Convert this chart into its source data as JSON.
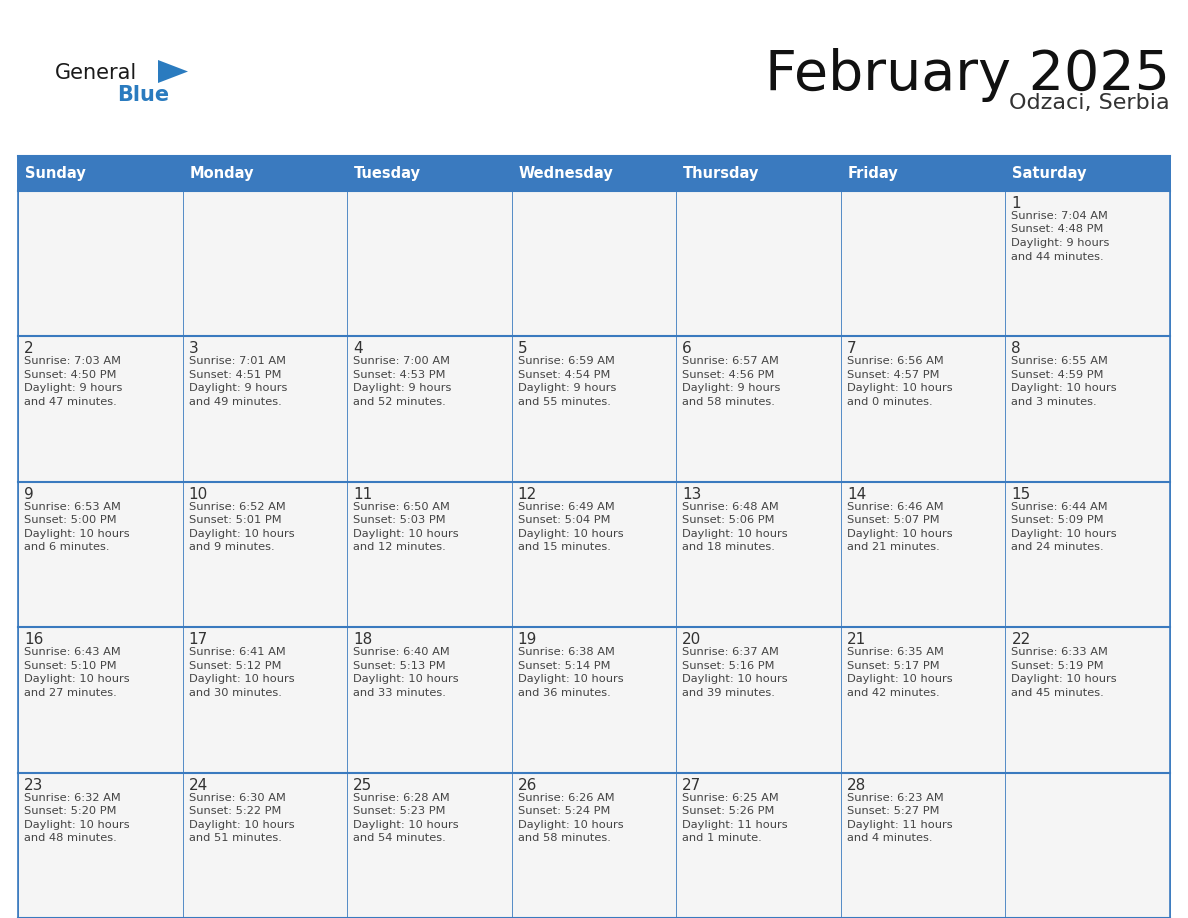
{
  "title": "February 2025",
  "subtitle": "Odzaci, Serbia",
  "days_of_week": [
    "Sunday",
    "Monday",
    "Tuesday",
    "Wednesday",
    "Thursday",
    "Friday",
    "Saturday"
  ],
  "header_bg": "#3a7abf",
  "header_text": "#ffffff",
  "cell_bg": "#f5f5f5",
  "cell_bg_last": "#f0f0f0",
  "border_color": "#3a7abf",
  "row_divider_color": "#3a7abf",
  "text_color": "#444444",
  "day_num_color": "#333333",
  "logo_general_color": "#1a1a1a",
  "logo_blue_color": "#2a7bbf",
  "logo_triangle_color": "#2a7bbf",
  "calendar": [
    [
      null,
      null,
      null,
      null,
      null,
      null,
      {
        "day": "1",
        "sunrise": "7:04 AM",
        "sunset": "4:48 PM",
        "daylight": "9 hours",
        "daylight2": "and 44 minutes."
      }
    ],
    [
      {
        "day": "2",
        "sunrise": "7:03 AM",
        "sunset": "4:50 PM",
        "daylight": "9 hours",
        "daylight2": "and 47 minutes."
      },
      {
        "day": "3",
        "sunrise": "7:01 AM",
        "sunset": "4:51 PM",
        "daylight": "9 hours",
        "daylight2": "and 49 minutes."
      },
      {
        "day": "4",
        "sunrise": "7:00 AM",
        "sunset": "4:53 PM",
        "daylight": "9 hours",
        "daylight2": "and 52 minutes."
      },
      {
        "day": "5",
        "sunrise": "6:59 AM",
        "sunset": "4:54 PM",
        "daylight": "9 hours",
        "daylight2": "and 55 minutes."
      },
      {
        "day": "6",
        "sunrise": "6:57 AM",
        "sunset": "4:56 PM",
        "daylight": "9 hours",
        "daylight2": "and 58 minutes."
      },
      {
        "day": "7",
        "sunrise": "6:56 AM",
        "sunset": "4:57 PM",
        "daylight": "10 hours",
        "daylight2": "and 0 minutes."
      },
      {
        "day": "8",
        "sunrise": "6:55 AM",
        "sunset": "4:59 PM",
        "daylight": "10 hours",
        "daylight2": "and 3 minutes."
      }
    ],
    [
      {
        "day": "9",
        "sunrise": "6:53 AM",
        "sunset": "5:00 PM",
        "daylight": "10 hours",
        "daylight2": "and 6 minutes."
      },
      {
        "day": "10",
        "sunrise": "6:52 AM",
        "sunset": "5:01 PM",
        "daylight": "10 hours",
        "daylight2": "and 9 minutes."
      },
      {
        "day": "11",
        "sunrise": "6:50 AM",
        "sunset": "5:03 PM",
        "daylight": "10 hours",
        "daylight2": "and 12 minutes."
      },
      {
        "day": "12",
        "sunrise": "6:49 AM",
        "sunset": "5:04 PM",
        "daylight": "10 hours",
        "daylight2": "and 15 minutes."
      },
      {
        "day": "13",
        "sunrise": "6:48 AM",
        "sunset": "5:06 PM",
        "daylight": "10 hours",
        "daylight2": "and 18 minutes."
      },
      {
        "day": "14",
        "sunrise": "6:46 AM",
        "sunset": "5:07 PM",
        "daylight": "10 hours",
        "daylight2": "and 21 minutes."
      },
      {
        "day": "15",
        "sunrise": "6:44 AM",
        "sunset": "5:09 PM",
        "daylight": "10 hours",
        "daylight2": "and 24 minutes."
      }
    ],
    [
      {
        "day": "16",
        "sunrise": "6:43 AM",
        "sunset": "5:10 PM",
        "daylight": "10 hours",
        "daylight2": "and 27 minutes."
      },
      {
        "day": "17",
        "sunrise": "6:41 AM",
        "sunset": "5:12 PM",
        "daylight": "10 hours",
        "daylight2": "and 30 minutes."
      },
      {
        "day": "18",
        "sunrise": "6:40 AM",
        "sunset": "5:13 PM",
        "daylight": "10 hours",
        "daylight2": "and 33 minutes."
      },
      {
        "day": "19",
        "sunrise": "6:38 AM",
        "sunset": "5:14 PM",
        "daylight": "10 hours",
        "daylight2": "and 36 minutes."
      },
      {
        "day": "20",
        "sunrise": "6:37 AM",
        "sunset": "5:16 PM",
        "daylight": "10 hours",
        "daylight2": "and 39 minutes."
      },
      {
        "day": "21",
        "sunrise": "6:35 AM",
        "sunset": "5:17 PM",
        "daylight": "10 hours",
        "daylight2": "and 42 minutes."
      },
      {
        "day": "22",
        "sunrise": "6:33 AM",
        "sunset": "5:19 PM",
        "daylight": "10 hours",
        "daylight2": "and 45 minutes."
      }
    ],
    [
      {
        "day": "23",
        "sunrise": "6:32 AM",
        "sunset": "5:20 PM",
        "daylight": "10 hours",
        "daylight2": "and 48 minutes."
      },
      {
        "day": "24",
        "sunrise": "6:30 AM",
        "sunset": "5:22 PM",
        "daylight": "10 hours",
        "daylight2": "and 51 minutes."
      },
      {
        "day": "25",
        "sunrise": "6:28 AM",
        "sunset": "5:23 PM",
        "daylight": "10 hours",
        "daylight2": "and 54 minutes."
      },
      {
        "day": "26",
        "sunrise": "6:26 AM",
        "sunset": "5:24 PM",
        "daylight": "10 hours",
        "daylight2": "and 58 minutes."
      },
      {
        "day": "27",
        "sunrise": "6:25 AM",
        "sunset": "5:26 PM",
        "daylight": "11 hours",
        "daylight2": "and 1 minute."
      },
      {
        "day": "28",
        "sunrise": "6:23 AM",
        "sunset": "5:27 PM",
        "daylight": "11 hours",
        "daylight2": "and 4 minutes."
      },
      null
    ]
  ]
}
